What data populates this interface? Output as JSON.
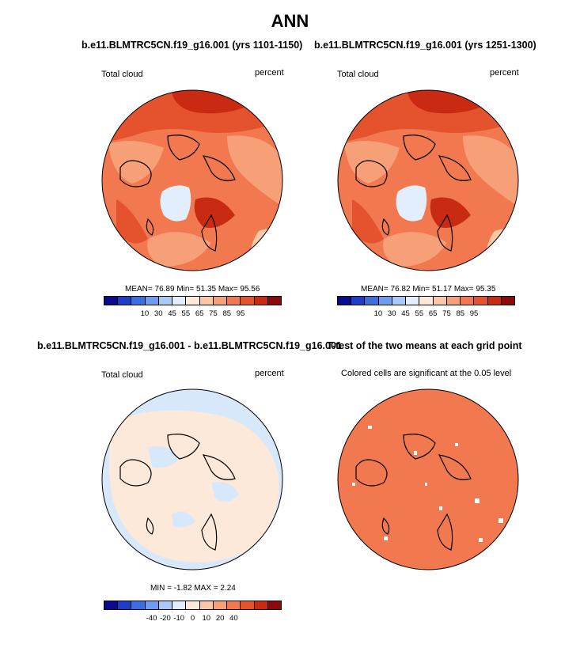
{
  "main_title": "ANN",
  "panels": [
    {
      "title": "b.e11.BLMTRC5CN.f19_g16.001 (yrs 1101-1150)",
      "variable": "Total cloud",
      "units": "percent",
      "stats": "MEAN=  76.89  Min=  51.35  Max=  95.56"
    },
    {
      "title": "b.e11.BLMTRC5CN.f19_g16.001 (yrs 1251-1300)",
      "variable": "Total cloud",
      "units": "percent",
      "stats": "MEAN=  76.82  Min=  51.17  Max=  95.35"
    },
    {
      "title": "b.e11.BLMTRC5CN.f19_g16.001 - b.e11.BLMTRC5CN.f19_g16.001",
      "variable": "Total cloud",
      "units": "percent",
      "stats": "MIN = -1.82 MAX =  2.24"
    },
    {
      "title": "T-test of the two means at each grid point",
      "subtitle": "Colored cells are significant at the 0.05 level"
    }
  ],
  "colorbars": {
    "mean": {
      "colors": [
        "#0a0a8c",
        "#1f3ec8",
        "#3b6fe0",
        "#6f9cf0",
        "#a9c9f6",
        "#e2eefc",
        "#fde9d9",
        "#fbc7a6",
        "#f7a078",
        "#f2784f",
        "#e4532e",
        "#c92b12",
        "#8c0a0a"
      ],
      "ticks": [
        "10",
        "30",
        "45",
        "55",
        "65",
        "75",
        "85",
        "95"
      ]
    },
    "diff": {
      "colors": [
        "#0a0a8c",
        "#1f3ec8",
        "#3b6fe0",
        "#6f9cf0",
        "#a9c9f6",
        "#e2eefc",
        "#fde9d9",
        "#fbc7a6",
        "#f7a078",
        "#f2784f",
        "#e4532e",
        "#c92b12",
        "#8c0a0a"
      ],
      "ticks": [
        "-40",
        "-20",
        "-10",
        "0",
        "10",
        "20",
        "40"
      ]
    }
  },
  "map_colors": {
    "mean_base": "#f2784f",
    "mean_light": "#f7a078",
    "mean_dark": "#e4532e",
    "mean_darkest": "#c92b12",
    "greenland": "#e2eefc",
    "diff_blue": "#d8e8fb",
    "diff_peach": "#fde9d9",
    "ttest": "#f2784f"
  }
}
